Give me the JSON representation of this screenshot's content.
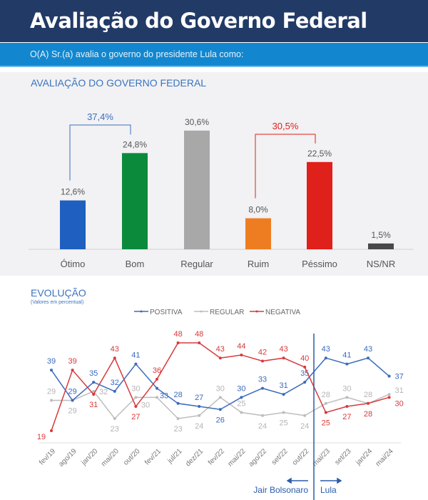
{
  "header": {
    "title": "Avaliação do Governo Federal",
    "question": "O(A) Sr.(a) avalia o governo do presidente Lula como:"
  },
  "chart_data": [
    {
      "type": "bar",
      "title": "AVALIAÇÃO DO GOVERNO FEDERAL",
      "categories": [
        "Ótimo",
        "Bom",
        "Regular",
        "Ruim",
        "Péssimo",
        "NS/NR"
      ],
      "values": [
        12.6,
        24.8,
        30.6,
        8.0,
        22.5,
        1.5
      ],
      "labels": [
        "12,6%",
        "24,8%",
        "30,6%",
        "8,0%",
        "22,5%",
        "1,5%"
      ],
      "colors": [
        "#1f5fbf",
        "#0b8a3c",
        "#a8a8a8",
        "#ee7d22",
        "#e0201a",
        "#484848"
      ],
      "groups": [
        {
          "label": "37,4%",
          "from": 0,
          "to": 1,
          "color": "#3a6fbf"
        },
        {
          "label": "30,5%",
          "from": 3,
          "to": 4,
          "color": "#e0201a"
        }
      ]
    },
    {
      "type": "line",
      "title": "EVOLUÇÃO",
      "subtitle": "(Valores em percentual)",
      "legend_position": "top-center",
      "categories": [
        "fev/19",
        "ago/19",
        "jan/20",
        "mai/20",
        "out/20",
        "fev/21",
        "jul/21",
        "dez/21",
        "fev/22",
        "mai/22",
        "ago/22",
        "set/22",
        "out/22",
        "mai/23",
        "set/23",
        "jan/24",
        "mai/24"
      ],
      "series": [
        {
          "name": "POSITIVA",
          "color": "#3a6bbd",
          "values": [
            39,
            29,
            35,
            32,
            41,
            33,
            28,
            27,
            26,
            30,
            33,
            31,
            35,
            43,
            41,
            43,
            37
          ]
        },
        {
          "name": "REGULAR",
          "color": "#bdbdbd",
          "values": [
            29,
            29,
            32,
            23,
            30,
            30,
            23,
            24,
            30,
            25,
            24,
            25,
            24,
            28,
            30,
            28,
            31
          ]
        },
        {
          "name": "NEGATIVA",
          "color": "#d8393b",
          "values": [
            19,
            39,
            31,
            43,
            27,
            36,
            48,
            48,
            43,
            44,
            42,
            43,
            40,
            25,
            27,
            28,
            30
          ]
        }
      ],
      "annotations": {
        "divider_after": "out/22",
        "left": "Jair Bolsonaro",
        "right": "Lula"
      }
    }
  ]
}
